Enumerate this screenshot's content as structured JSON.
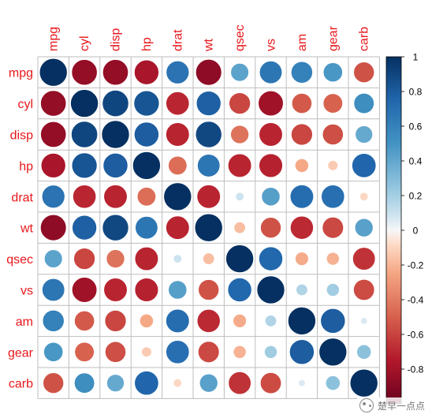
{
  "chart_data": {
    "type": "heatmap",
    "variables": [
      "mpg",
      "cyl",
      "disp",
      "hp",
      "drat",
      "wt",
      "qsec",
      "vs",
      "am",
      "gear",
      "carb"
    ],
    "correlation_matrix": [
      [
        1.0,
        -0.85,
        -0.85,
        -0.78,
        0.68,
        -0.87,
        0.42,
        0.66,
        0.6,
        0.48,
        -0.55
      ],
      [
        -0.85,
        1.0,
        0.9,
        0.83,
        -0.7,
        0.78,
        -0.59,
        -0.81,
        -0.52,
        -0.49,
        0.53
      ],
      [
        -0.85,
        0.9,
        1.0,
        0.79,
        -0.71,
        0.89,
        -0.43,
        -0.71,
        -0.59,
        -0.56,
        0.39
      ],
      [
        -0.78,
        0.83,
        0.79,
        1.0,
        -0.45,
        0.66,
        -0.71,
        -0.72,
        -0.24,
        -0.13,
        0.75
      ],
      [
        0.68,
        -0.7,
        -0.71,
        -0.45,
        1.0,
        -0.71,
        0.09,
        0.44,
        0.71,
        0.7,
        -0.09
      ],
      [
        -0.87,
        0.78,
        0.89,
        0.66,
        -0.71,
        1.0,
        -0.17,
        -0.55,
        -0.69,
        -0.58,
        0.43
      ],
      [
        0.42,
        -0.59,
        -0.43,
        -0.71,
        0.09,
        -0.17,
        1.0,
        0.74,
        -0.23,
        -0.21,
        -0.66
      ],
      [
        0.66,
        -0.81,
        -0.71,
        -0.72,
        0.44,
        -0.55,
        0.74,
        1.0,
        0.17,
        0.21,
        -0.57
      ],
      [
        0.6,
        -0.52,
        -0.59,
        -0.24,
        0.71,
        -0.69,
        -0.23,
        0.17,
        1.0,
        0.79,
        0.06
      ],
      [
        0.48,
        -0.49,
        -0.56,
        -0.13,
        0.7,
        -0.58,
        -0.21,
        0.21,
        0.79,
        1.0,
        0.27
      ],
      [
        -0.55,
        0.53,
        0.39,
        0.75,
        -0.09,
        0.43,
        -0.66,
        -0.57,
        0.06,
        0.27,
        1.0
      ]
    ],
    "scale_range": [
      -1,
      1
    ],
    "colorbar_ticks": [
      "1",
      "0.8",
      "0.6",
      "0.4",
      "0.2",
      "0",
      "-0.2",
      "-0.4",
      "-0.6",
      "-0.8"
    ],
    "colorbar_tick_values": [
      1,
      0.8,
      0.6,
      0.4,
      0.2,
      0,
      -0.2,
      -0.4,
      -0.6,
      -0.8
    ],
    "colors": {
      "label": "#e8171b",
      "grid": "#bebebe",
      "negative_end": "#67001f",
      "positive_end": "#053061",
      "neutral": "#f7f7f7"
    },
    "grid": true,
    "legend_placement": "right"
  },
  "watermark": {
    "text": "楚早一点点"
  }
}
